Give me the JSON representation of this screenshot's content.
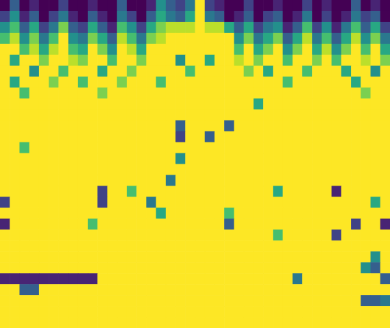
{
  "chart_data": {
    "type": "heatmap",
    "tick_labels": false,
    "xlim": [
      0,
      40
    ],
    "ylim": [
      0,
      30
    ],
    "zlim": [
      0,
      1
    ],
    "cells": [
      [
        0,
        0.3,
        0,
        0.1,
        0,
        0,
        0.2,
        0,
        0,
        0.1,
        0,
        0,
        0.3,
        0,
        0,
        0.1,
        0.5,
        0.3,
        0.2,
        0.4,
        1,
        0.2,
        0.1,
        0,
        0,
        0.2,
        0,
        0,
        0.1,
        0,
        0,
        0.2,
        0,
        0.1,
        0,
        0,
        0.3,
        0,
        0.1,
        0
      ],
      [
        0.2,
        0.5,
        0.1,
        0.3,
        0,
        0.2,
        0.4,
        0.1,
        0,
        0.3,
        0.1,
        0,
        0.4,
        0.2,
        0,
        0.3,
        0.6,
        0.4,
        0.3,
        0.6,
        1,
        0.4,
        0.3,
        0,
        0.1,
        0.3,
        0,
        0.2,
        0.3,
        0,
        0.1,
        0.4,
        0,
        0.2,
        0,
        0.1,
        0.4,
        0.2,
        0.3,
        0
      ],
      [
        0.5,
        0.7,
        0.3,
        0.6,
        0.2,
        0.4,
        0.8,
        0.3,
        0.2,
        0.6,
        0.3,
        0.1,
        0.7,
        0.5,
        0.2,
        0.6,
        0.8,
        0.9,
        0.9,
        0.9,
        1,
        0.9,
        0.9,
        0.6,
        0.3,
        0.6,
        0.2,
        0.4,
        0.5,
        0.1,
        0.3,
        0.7,
        0.2,
        0.5,
        0.1,
        0.4,
        0.7,
        0.3,
        0.6,
        0.2
      ],
      [
        0.7,
        0.9,
        0.5,
        0.8,
        0.4,
        0.7,
        1,
        0.5,
        0.4,
        0.8,
        0.6,
        0.3,
        0.9,
        0.7,
        0.4,
        0.8,
        0.9,
        1,
        1,
        1,
        1,
        1,
        1,
        1,
        0.5,
        0.8,
        0.4,
        0.6,
        0.8,
        0.3,
        0.6,
        0.9,
        0.4,
        0.7,
        0.3,
        0.6,
        0.9,
        0.5,
        0.8,
        0.4
      ],
      [
        1,
        1,
        0.7,
        0.9,
        0.6,
        0.9,
        1,
        0.7,
        0.6,
        1,
        0.8,
        0.5,
        1,
        0.9,
        0.6,
        1,
        1,
        1,
        1,
        1,
        1,
        1,
        1,
        1,
        0.7,
        1,
        0.6,
        0.8,
        1,
        0.5,
        0.8,
        1,
        0.6,
        0.9,
        0.5,
        0.8,
        1,
        0.7,
        1,
        0.6
      ],
      [
        1,
        0.6,
        1,
        1,
        0.8,
        1,
        1,
        0.9,
        0.8,
        1,
        1,
        0.7,
        1,
        1,
        0.8,
        1,
        1,
        1,
        0.5,
        1,
        1,
        0.6,
        1,
        1,
        0.9,
        1,
        0.8,
        1,
        1,
        0.7,
        1,
        1,
        0.8,
        1,
        0.7,
        1,
        1,
        0.9,
        1,
        0.8
      ],
      [
        1,
        1,
        1,
        0.5,
        1,
        1,
        0.7,
        1,
        1,
        1,
        0.6,
        1,
        1,
        0.8,
        1,
        1,
        1,
        1,
        1,
        0.7,
        1,
        1,
        1,
        1,
        1,
        0.8,
        1,
        0.6,
        1,
        1,
        1,
        0.7,
        1,
        1,
        1,
        0.6,
        1,
        1,
        0.5,
        1
      ],
      [
        1,
        0.6,
        1,
        1,
        1,
        0.8,
        1,
        1,
        0.7,
        1,
        1,
        1,
        0.8,
        1,
        1,
        1,
        0.7,
        1,
        1,
        1,
        1,
        1,
        1,
        1,
        1,
        1,
        1,
        1,
        1,
        0.7,
        1,
        1,
        1,
        1,
        1,
        1,
        0.6,
        1,
        1,
        1
      ],
      [
        1,
        1,
        0.7,
        1,
        1,
        1,
        1,
        1,
        1,
        1,
        0.8,
        1,
        1,
        1,
        1,
        1,
        1,
        1,
        1,
        1,
        1,
        1,
        1,
        1,
        1,
        1,
        1,
        1,
        1,
        1,
        1,
        1,
        1,
        1,
        1,
        1,
        1,
        0.8,
        1,
        1
      ],
      [
        1,
        1,
        1,
        1,
        1,
        1,
        1,
        1,
        1,
        1,
        1,
        1,
        1,
        1,
        1,
        1,
        1,
        1,
        1,
        1,
        1,
        1,
        1,
        1,
        1,
        1,
        0.6,
        1,
        1,
        1,
        1,
        1,
        1,
        1,
        1,
        1,
        1,
        1,
        1,
        1
      ],
      [
        1,
        1,
        1,
        1,
        1,
        1,
        1,
        1,
        1,
        1,
        1,
        1,
        1,
        1,
        1,
        1,
        1,
        1,
        1,
        1,
        1,
        1,
        1,
        1,
        1,
        1,
        1,
        1,
        1,
        1,
        1,
        1,
        1,
        1,
        1,
        1,
        1,
        1,
        1,
        1
      ],
      [
        1,
        1,
        1,
        1,
        1,
        1,
        1,
        1,
        1,
        1,
        1,
        1,
        1,
        1,
        1,
        1,
        1,
        1,
        0.3,
        1,
        1,
        1,
        1,
        0.3,
        1,
        1,
        1,
        1,
        1,
        1,
        1,
        1,
        1,
        1,
        1,
        1,
        1,
        1,
        1,
        1
      ],
      [
        1,
        1,
        1,
        1,
        1,
        1,
        1,
        1,
        1,
        1,
        1,
        1,
        1,
        1,
        1,
        1,
        1,
        1,
        0.2,
        1,
        1,
        0.3,
        1,
        1,
        1,
        1,
        1,
        1,
        1,
        1,
        1,
        1,
        1,
        1,
        1,
        1,
        1,
        1,
        1,
        1
      ],
      [
        1,
        1,
        0.7,
        1,
        1,
        1,
        1,
        1,
        1,
        1,
        1,
        1,
        1,
        1,
        1,
        1,
        1,
        1,
        1,
        1,
        1,
        1,
        1,
        1,
        1,
        1,
        1,
        1,
        1,
        1,
        1,
        1,
        1,
        1,
        1,
        1,
        1,
        1,
        1,
        1
      ],
      [
        1,
        1,
        1,
        1,
        1,
        1,
        1,
        1,
        1,
        1,
        1,
        1,
        1,
        1,
        1,
        1,
        1,
        1,
        0.5,
        1,
        1,
        1,
        1,
        1,
        1,
        1,
        1,
        1,
        1,
        1,
        1,
        1,
        1,
        1,
        1,
        1,
        1,
        1,
        1,
        1
      ],
      [
        1,
        1,
        1,
        1,
        1,
        1,
        1,
        1,
        1,
        1,
        1,
        1,
        1,
        1,
        1,
        1,
        1,
        1,
        1,
        1,
        1,
        1,
        1,
        1,
        1,
        1,
        1,
        1,
        1,
        1,
        1,
        1,
        1,
        1,
        1,
        1,
        1,
        1,
        1,
        1
      ],
      [
        1,
        1,
        1,
        1,
        1,
        1,
        1,
        1,
        1,
        1,
        1,
        1,
        1,
        1,
        1,
        1,
        1,
        0.4,
        1,
        1,
        1,
        1,
        1,
        1,
        1,
        1,
        1,
        1,
        1,
        1,
        1,
        1,
        1,
        1,
        1,
        1,
        1,
        1,
        1,
        1
      ],
      [
        1,
        1,
        1,
        1,
        1,
        1,
        1,
        1,
        1,
        1,
        0.2,
        1,
        1,
        0.7,
        1,
        1,
        1,
        1,
        1,
        1,
        1,
        1,
        1,
        1,
        1,
        1,
        1,
        1,
        0.6,
        1,
        1,
        1,
        1,
        1,
        0.1,
        1,
        1,
        1,
        1,
        1
      ],
      [
        0.2,
        1,
        1,
        1,
        1,
        1,
        1,
        1,
        1,
        1,
        0.2,
        1,
        1,
        1,
        1,
        0.4,
        1,
        1,
        1,
        1,
        1,
        1,
        1,
        1,
        1,
        1,
        1,
        1,
        1,
        1,
        1,
        1,
        1,
        1,
        1,
        1,
        1,
        1,
        0.6,
        1
      ],
      [
        1,
        1,
        1,
        1,
        1,
        1,
        1,
        1,
        1,
        1,
        1,
        1,
        1,
        1,
        1,
        1,
        0.6,
        1,
        1,
        1,
        1,
        1,
        1,
        0.7,
        1,
        1,
        1,
        1,
        1,
        1,
        1,
        1,
        1,
        1,
        1,
        1,
        1,
        1,
        1,
        1
      ],
      [
        0.1,
        1,
        1,
        1,
        1,
        1,
        1,
        1,
        1,
        0.7,
        1,
        1,
        1,
        1,
        1,
        1,
        1,
        1,
        1,
        1,
        1,
        1,
        1,
        0.3,
        1,
        1,
        1,
        1,
        1,
        1,
        1,
        1,
        1,
        1,
        1,
        1,
        0.2,
        1,
        1,
        0.1
      ],
      [
        1,
        1,
        1,
        1,
        1,
        1,
        1,
        1,
        1,
        1,
        1,
        1,
        1,
        1,
        1,
        1,
        1,
        1,
        1,
        1,
        1,
        1,
        1,
        1,
        1,
        1,
        1,
        1,
        0.7,
        1,
        1,
        1,
        1,
        1,
        0.2,
        1,
        1,
        1,
        1,
        1
      ],
      [
        1,
        1,
        1,
        1,
        1,
        1,
        1,
        1,
        1,
        1,
        1,
        1,
        1,
        1,
        1,
        1,
        1,
        1,
        1,
        1,
        1,
        1,
        1,
        1,
        1,
        1,
        1,
        1,
        1,
        1,
        1,
        1,
        1,
        1,
        1,
        1,
        1,
        1,
        1,
        1
      ],
      [
        1,
        1,
        1,
        1,
        1,
        1,
        1,
        1,
        1,
        1,
        1,
        1,
        1,
        1,
        1,
        1,
        1,
        1,
        1,
        1,
        1,
        1,
        1,
        1,
        1,
        1,
        1,
        1,
        1,
        1,
        1,
        1,
        1,
        1,
        1,
        1,
        1,
        1,
        0.5,
        1
      ],
      [
        1,
        1,
        1,
        1,
        1,
        1,
        1,
        1,
        1,
        1,
        1,
        1,
        1,
        1,
        1,
        1,
        1,
        1,
        1,
        1,
        1,
        1,
        1,
        1,
        1,
        1,
        1,
        1,
        1,
        1,
        1,
        1,
        1,
        1,
        1,
        1,
        1,
        0.5,
        0.3,
        1
      ],
      [
        0.1,
        0.1,
        0.1,
        0.1,
        0.1,
        0.1,
        0.1,
        0.1,
        0.1,
        0.1,
        1,
        1,
        1,
        1,
        1,
        1,
        1,
        1,
        1,
        1,
        1,
        1,
        1,
        1,
        1,
        1,
        1,
        1,
        1,
        1,
        0.4,
        1,
        1,
        1,
        1,
        1,
        1,
        1,
        1,
        0.3
      ],
      [
        1,
        1,
        0.3,
        0.3,
        1,
        1,
        1,
        1,
        1,
        1,
        1,
        1,
        1,
        1,
        1,
        1,
        1,
        1,
        1,
        1,
        1,
        1,
        1,
        1,
        1,
        1,
        1,
        1,
        1,
        1,
        1,
        1,
        1,
        1,
        1,
        1,
        1,
        1,
        1,
        1
      ],
      [
        1,
        1,
        1,
        1,
        1,
        1,
        1,
        1,
        1,
        1,
        1,
        1,
        1,
        1,
        1,
        1,
        1,
        1,
        1,
        1,
        1,
        1,
        1,
        1,
        1,
        1,
        1,
        1,
        1,
        1,
        1,
        1,
        1,
        1,
        1,
        1,
        1,
        0.3,
        0.3,
        0.4
      ],
      [
        1,
        1,
        1,
        1,
        1,
        1,
        1,
        1,
        1,
        1,
        1,
        1,
        1,
        1,
        1,
        1,
        1,
        1,
        1,
        1,
        1,
        1,
        1,
        1,
        1,
        1,
        1,
        1,
        1,
        1,
        1,
        1,
        1,
        1,
        1,
        1,
        1,
        1,
        1,
        1
      ],
      [
        1,
        1,
        1,
        1,
        1,
        1,
        1,
        1,
        1,
        1,
        1,
        1,
        1,
        1,
        1,
        1,
        1,
        1,
        1,
        1,
        1,
        1,
        1,
        1,
        1,
        1,
        1,
        1,
        1,
        1,
        1,
        1,
        1,
        1,
        1,
        1,
        1,
        1,
        1,
        1
      ]
    ]
  }
}
